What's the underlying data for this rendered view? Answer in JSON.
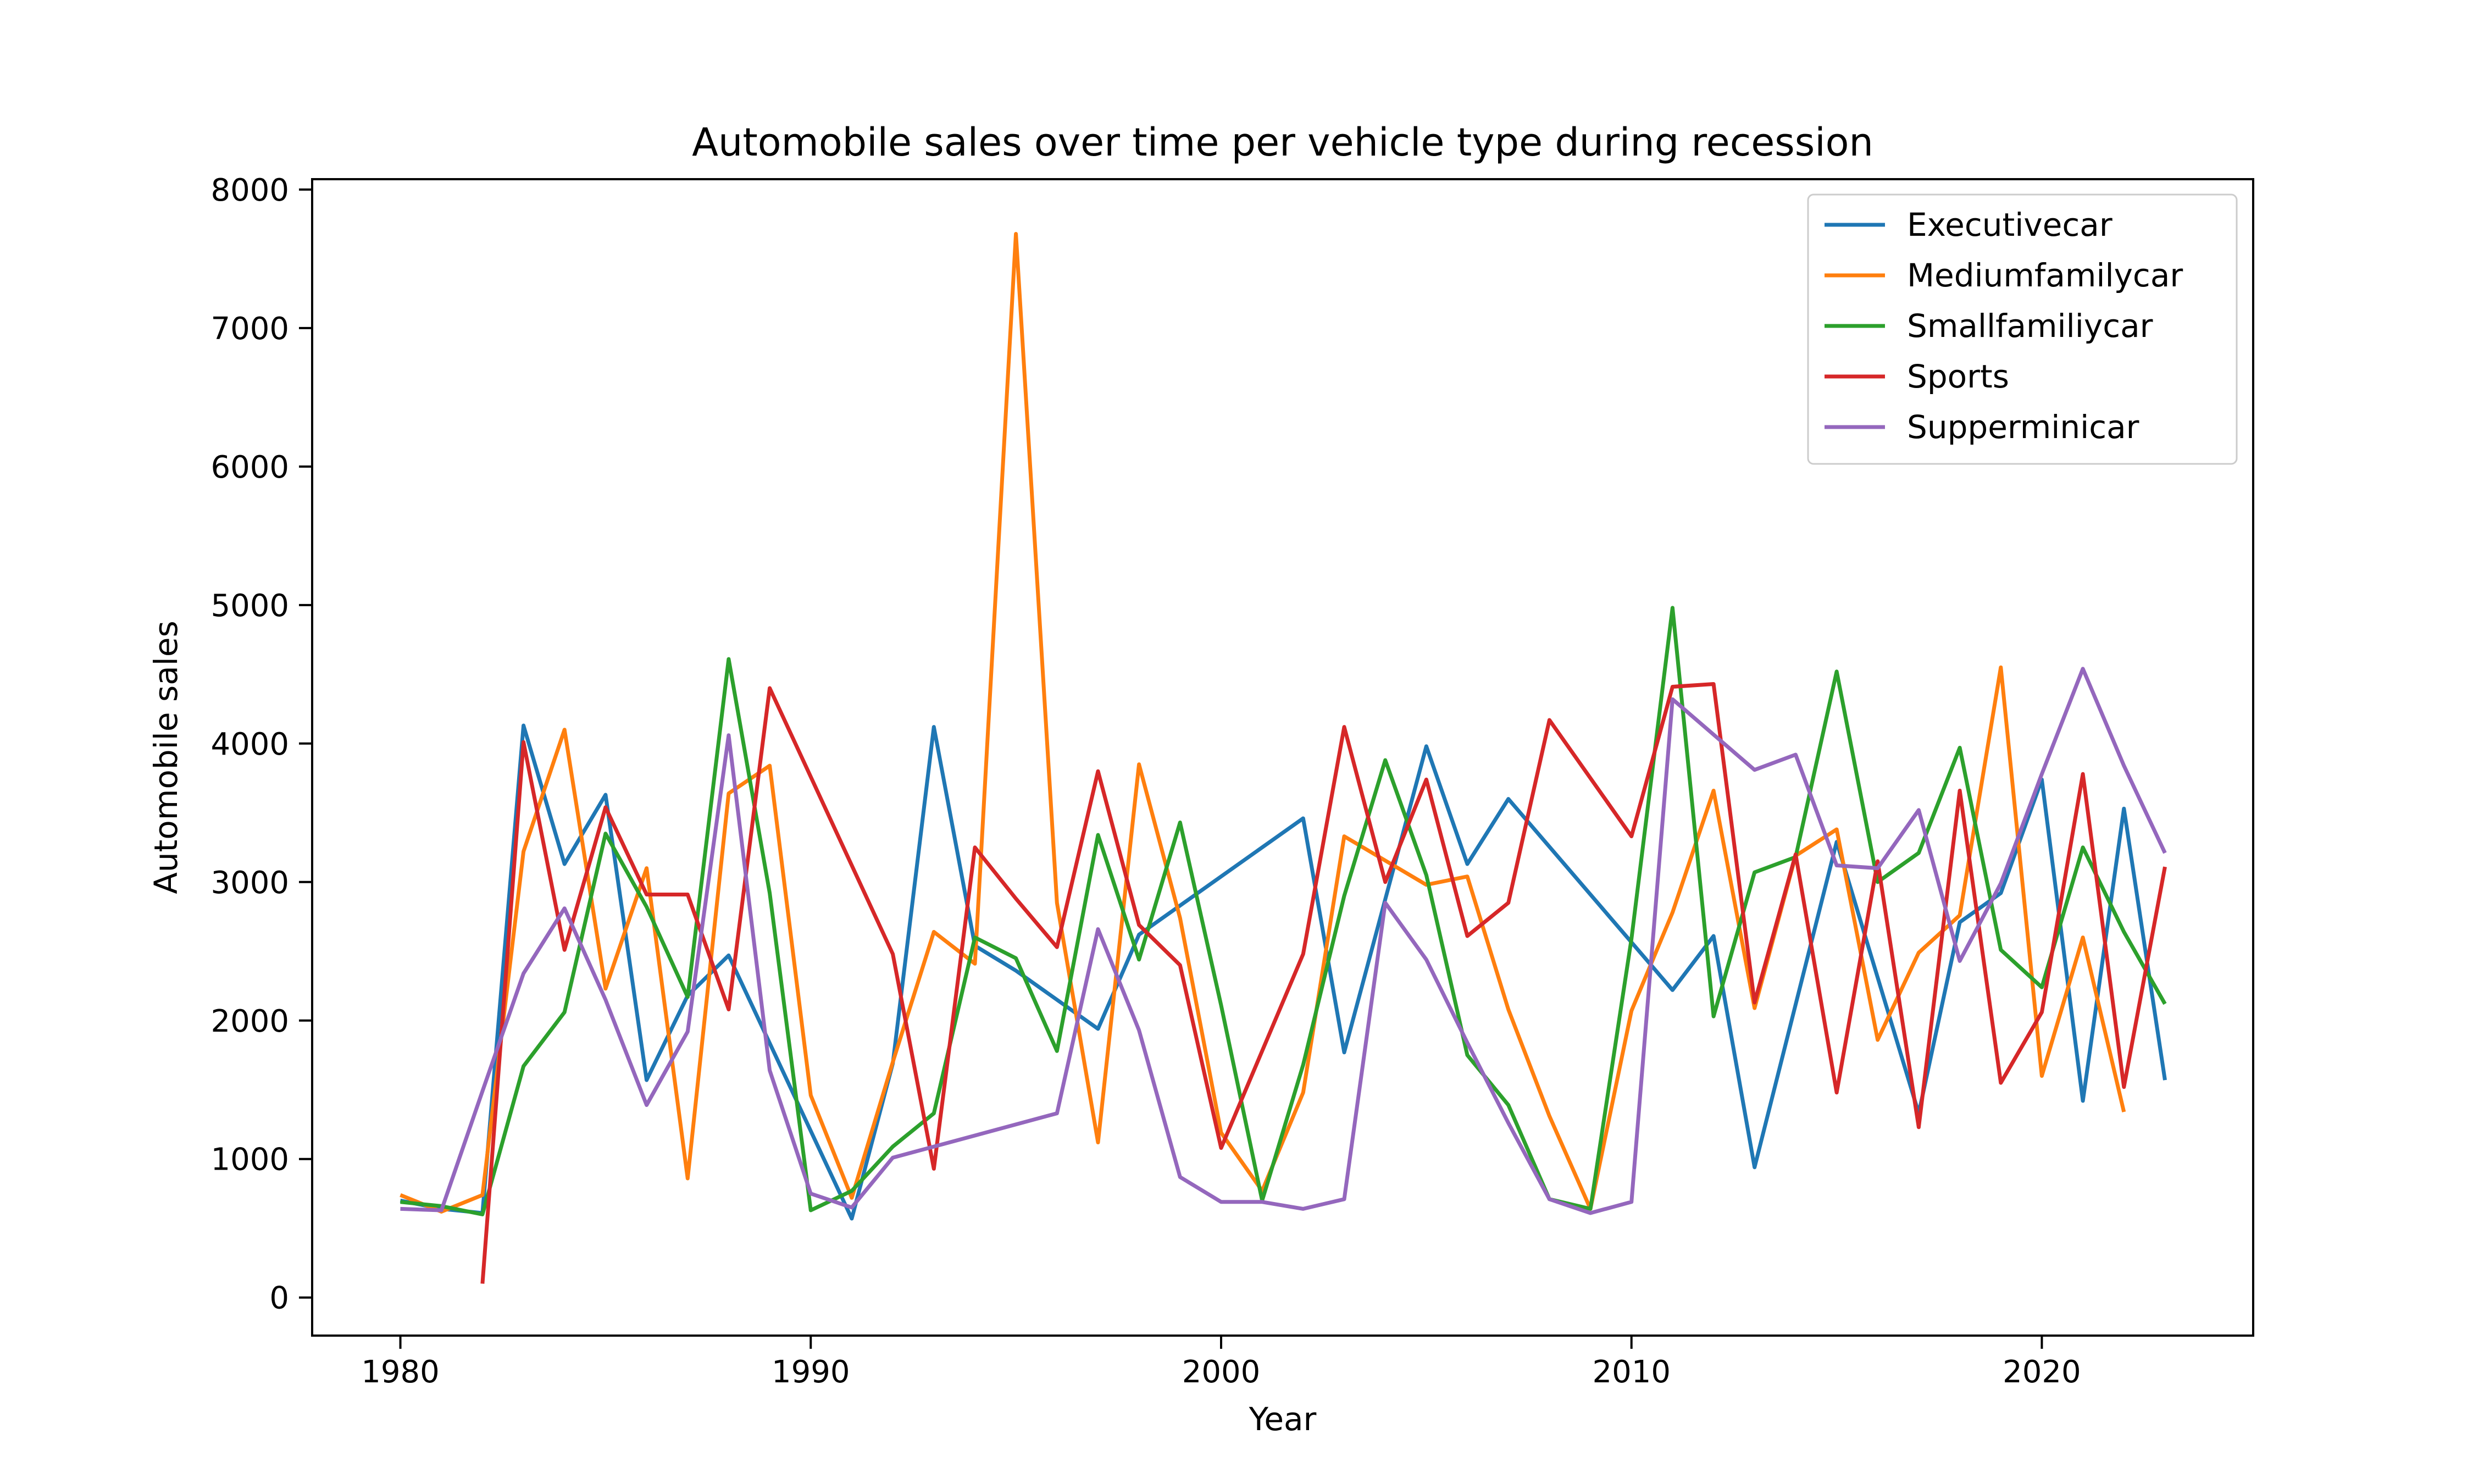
{
  "chart_data": {
    "type": "line",
    "title": "Automobile sales over time per vehicle type during recession",
    "xlabel": "Year",
    "ylabel": "Automobile sales",
    "xlim": [
      1977.85,
      2025.15
    ],
    "ylim": [
      -275,
      8075
    ],
    "xticks": [
      1980,
      1990,
      2000,
      2010,
      2020
    ],
    "yticks": [
      0,
      1000,
      2000,
      3000,
      4000,
      5000,
      6000,
      7000,
      8000
    ],
    "grid": false,
    "legend_position": "top-right",
    "series": [
      {
        "name": "Executivecar",
        "color": "#1f77b4",
        "points": [
          [
            1980,
            700
          ],
          [
            1981,
            640
          ],
          [
            1982,
            610
          ],
          [
            1983,
            4130
          ],
          [
            1984,
            3130
          ],
          [
            1985,
            3630
          ],
          [
            1986,
            1570
          ],
          [
            1987,
            2180
          ],
          [
            1988,
            2470
          ],
          [
            1991,
            570
          ],
          [
            1992,
            1690
          ],
          [
            1993,
            4120
          ],
          [
            1994,
            2540
          ],
          [
            1995,
            2360
          ],
          [
            1997,
            1940
          ],
          [
            1998,
            2620
          ],
          [
            2002,
            3460
          ],
          [
            2003,
            1770
          ],
          [
            2005,
            3980
          ],
          [
            2006,
            3130
          ],
          [
            2007,
            3600
          ],
          [
            2011,
            2220
          ],
          [
            2012,
            2610
          ],
          [
            2013,
            940
          ],
          [
            2015,
            3290
          ],
          [
            2017,
            1330
          ],
          [
            2018,
            2710
          ],
          [
            2019,
            2920
          ],
          [
            2020,
            3740
          ],
          [
            2021,
            1420
          ],
          [
            2022,
            3530
          ],
          [
            2023,
            1570
          ]
        ]
      },
      {
        "name": "Mediumfamilycar",
        "color": "#ff7f0e",
        "points": [
          [
            1980,
            740
          ],
          [
            1981,
            620
          ],
          [
            1982,
            740
          ],
          [
            1983,
            3220
          ],
          [
            1984,
            4100
          ],
          [
            1985,
            2230
          ],
          [
            1986,
            3100
          ],
          [
            1987,
            860
          ],
          [
            1988,
            3640
          ],
          [
            1989,
            3840
          ],
          [
            1990,
            1460
          ],
          [
            1991,
            720
          ],
          [
            1992,
            1700
          ],
          [
            1993,
            2640
          ],
          [
            1994,
            2410
          ],
          [
            1995,
            7680
          ],
          [
            1996,
            2850
          ],
          [
            1997,
            1120
          ],
          [
            1998,
            3850
          ],
          [
            1999,
            2740
          ],
          [
            2000,
            1190
          ],
          [
            2001,
            770
          ],
          [
            2002,
            1480
          ],
          [
            2003,
            3330
          ],
          [
            2005,
            2980
          ],
          [
            2006,
            3040
          ],
          [
            2007,
            2080
          ],
          [
            2008,
            1310
          ],
          [
            2009,
            640
          ],
          [
            2010,
            2070
          ],
          [
            2011,
            2780
          ],
          [
            2012,
            3660
          ],
          [
            2013,
            2090
          ],
          [
            2014,
            3190
          ],
          [
            2015,
            3380
          ],
          [
            2016,
            1860
          ],
          [
            2017,
            2490
          ],
          [
            2018,
            2760
          ],
          [
            2019,
            4550
          ],
          [
            2020,
            1600
          ],
          [
            2021,
            2600
          ],
          [
            2022,
            1340
          ]
        ]
      },
      {
        "name": "Smallfamiliycar",
        "color": "#2ca02c",
        "points": [
          [
            1980,
            690
          ],
          [
            1981,
            660
          ],
          [
            1982,
            600
          ],
          [
            1983,
            1670
          ],
          [
            1984,
            2060
          ],
          [
            1985,
            3350
          ],
          [
            1986,
            2820
          ],
          [
            1987,
            2170
          ],
          [
            1988,
            4610
          ],
          [
            1989,
            2920
          ],
          [
            1990,
            630
          ],
          [
            1991,
            770
          ],
          [
            1992,
            1090
          ],
          [
            1993,
            1330
          ],
          [
            1994,
            2600
          ],
          [
            1995,
            2450
          ],
          [
            1996,
            1780
          ],
          [
            1997,
            3340
          ],
          [
            1998,
            2440
          ],
          [
            1999,
            3430
          ],
          [
            2000,
            2110
          ],
          [
            2001,
            700
          ],
          [
            2002,
            1680
          ],
          [
            2003,
            2900
          ],
          [
            2004,
            3880
          ],
          [
            2005,
            3050
          ],
          [
            2006,
            1750
          ],
          [
            2007,
            1390
          ],
          [
            2008,
            710
          ],
          [
            2009,
            640
          ],
          [
            2010,
            2590
          ],
          [
            2011,
            4980
          ],
          [
            2012,
            2030
          ],
          [
            2013,
            3070
          ],
          [
            2014,
            3180
          ],
          [
            2015,
            4520
          ],
          [
            2016,
            3000
          ],
          [
            2017,
            3210
          ],
          [
            2018,
            3970
          ],
          [
            2019,
            2510
          ],
          [
            2020,
            2240
          ],
          [
            2021,
            3250
          ],
          [
            2022,
            2640
          ],
          [
            2023,
            2120
          ]
        ]
      },
      {
        "name": "Sports",
        "color": "#d62728",
        "points": [
          [
            1982,
            100
          ],
          [
            1983,
            4010
          ],
          [
            1984,
            2510
          ],
          [
            1985,
            3540
          ],
          [
            1986,
            2910
          ],
          [
            1987,
            2910
          ],
          [
            1988,
            2080
          ],
          [
            1989,
            4400
          ],
          [
            1992,
            2480
          ],
          [
            1993,
            930
          ],
          [
            1994,
            3250
          ],
          [
            1995,
            2880
          ],
          [
            1996,
            2530
          ],
          [
            1997,
            3800
          ],
          [
            1998,
            2690
          ],
          [
            1999,
            2400
          ],
          [
            2000,
            1080
          ],
          [
            2002,
            2480
          ],
          [
            2003,
            4120
          ],
          [
            2004,
            3000
          ],
          [
            2005,
            3740
          ],
          [
            2006,
            2610
          ],
          [
            2007,
            2850
          ],
          [
            2008,
            4170
          ],
          [
            2010,
            3330
          ],
          [
            2011,
            4410
          ],
          [
            2012,
            4430
          ],
          [
            2013,
            2130
          ],
          [
            2014,
            3200
          ],
          [
            2015,
            1480
          ],
          [
            2016,
            3150
          ],
          [
            2017,
            1230
          ],
          [
            2018,
            3660
          ],
          [
            2019,
            1550
          ],
          [
            2020,
            2060
          ],
          [
            2021,
            3780
          ],
          [
            2022,
            1520
          ],
          [
            2023,
            3110
          ]
        ]
      },
      {
        "name": "Supperminicar",
        "color": "#9467bd",
        "points": [
          [
            1980,
            640
          ],
          [
            1981,
            630
          ],
          [
            1982,
            1490
          ],
          [
            1983,
            2340
          ],
          [
            1984,
            2810
          ],
          [
            1985,
            2150
          ],
          [
            1986,
            1390
          ],
          [
            1987,
            1920
          ],
          [
            1988,
            4060
          ],
          [
            1989,
            1640
          ],
          [
            1990,
            750
          ],
          [
            1991,
            650
          ],
          [
            1992,
            1010
          ],
          [
            1993,
            1090
          ],
          [
            1996,
            1330
          ],
          [
            1997,
            2660
          ],
          [
            1998,
            1930
          ],
          [
            1999,
            870
          ],
          [
            2000,
            690
          ],
          [
            2001,
            690
          ],
          [
            2002,
            640
          ],
          [
            2003,
            710
          ],
          [
            2004,
            2850
          ],
          [
            2005,
            2440
          ],
          [
            2006,
            1840
          ],
          [
            2007,
            1260
          ],
          [
            2008,
            710
          ],
          [
            2009,
            610
          ],
          [
            2010,
            690
          ],
          [
            2011,
            4320
          ],
          [
            2013,
            3810
          ],
          [
            2014,
            3920
          ],
          [
            2015,
            3120
          ],
          [
            2016,
            3100
          ],
          [
            2017,
            3520
          ],
          [
            2018,
            2430
          ],
          [
            2019,
            2990
          ],
          [
            2020,
            3780
          ],
          [
            2021,
            4540
          ],
          [
            2022,
            3840
          ],
          [
            2023,
            3210
          ]
        ]
      }
    ]
  }
}
